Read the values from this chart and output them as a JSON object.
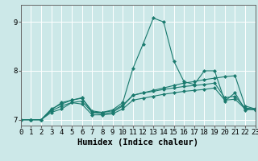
{
  "xlabel": "Humidex (Indice chaleur)",
  "xlim": [
    0,
    23
  ],
  "ylim": [
    6.88,
    9.35
  ],
  "bg_color": "#cce8e8",
  "grid_color": "#ffffff",
  "line_color": "#1a7a6e",
  "series": [
    [
      7.0,
      7.0,
      7.0,
      7.2,
      7.35,
      7.4,
      7.45,
      7.15,
      7.15,
      7.2,
      7.35,
      8.05,
      8.55,
      9.08,
      9.0,
      8.2,
      7.78,
      7.72,
      8.0,
      8.0,
      7.38,
      7.55,
      7.2,
      7.22
    ],
    [
      7.0,
      7.0,
      7.0,
      7.18,
      7.28,
      7.35,
      7.38,
      7.15,
      7.12,
      7.15,
      7.28,
      7.5,
      7.55,
      7.6,
      7.65,
      7.7,
      7.75,
      7.78,
      7.82,
      7.85,
      7.88,
      7.9,
      7.28,
      7.22
    ],
    [
      7.0,
      7.0,
      7.0,
      7.15,
      7.22,
      7.35,
      7.32,
      7.1,
      7.1,
      7.12,
      7.22,
      7.4,
      7.44,
      7.48,
      7.52,
      7.55,
      7.58,
      7.6,
      7.62,
      7.65,
      7.4,
      7.42,
      7.22,
      7.2
    ],
    [
      7.0,
      7.0,
      7.0,
      7.22,
      7.32,
      7.4,
      7.44,
      7.18,
      7.15,
      7.18,
      7.3,
      7.5,
      7.55,
      7.58,
      7.62,
      7.65,
      7.68,
      7.7,
      7.72,
      7.75,
      7.45,
      7.48,
      7.24,
      7.22
    ]
  ],
  "xtick_labels": [
    "0",
    "1",
    "2",
    "3",
    "4",
    "5",
    "6",
    "7",
    "8",
    "9",
    "10",
    "11",
    "12",
    "13",
    "14",
    "15",
    "16",
    "17",
    "18",
    "19",
    "20",
    "21",
    "22",
    "23"
  ],
  "ytick_labels": [
    "7",
    "8",
    "9"
  ],
  "ytick_values": [
    7,
    8,
    9
  ],
  "marker": "D",
  "markersize": 2.0,
  "linewidth": 0.8,
  "tick_fontsize": 6.5,
  "label_fontsize": 7.5
}
